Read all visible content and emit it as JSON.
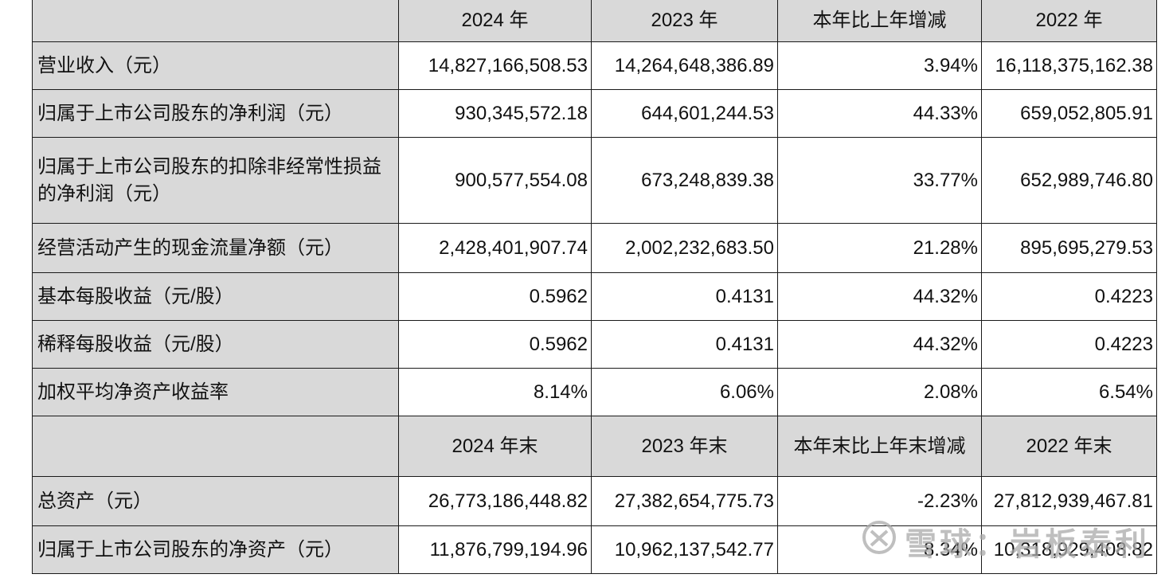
{
  "header1": [
    "",
    "2024 年",
    "2023 年",
    "本年比上年增减",
    "2022 年"
  ],
  "rows1": [
    {
      "label": "营业收入（元）",
      "v2024": "14,827,166,508.53",
      "v2023": "14,264,648,386.89",
      "change": "3.94%",
      "v2022": "16,118,375,162.38"
    },
    {
      "label": "归属于上市公司股东的净利润（元）",
      "v2024": "930,345,572.18",
      "v2023": "644,601,244.53",
      "change": "44.33%",
      "v2022": "659,052,805.91"
    },
    {
      "label": "归属于上市公司股东的扣除非经常性损益的净利润（元）",
      "v2024": "900,577,554.08",
      "v2023": "673,248,839.38",
      "change": "33.77%",
      "v2022": "652,989,746.80"
    },
    {
      "label": "经营活动产生的现金流量净额（元）",
      "v2024": "2,428,401,907.74",
      "v2023": "2,002,232,683.50",
      "change": "21.28%",
      "v2022": "895,695,279.53"
    },
    {
      "label": "基本每股收益（元/股）",
      "v2024": "0.5962",
      "v2023": "0.4131",
      "change": "44.32%",
      "v2022": "0.4223"
    },
    {
      "label": "稀释每股收益（元/股）",
      "v2024": "0.5962",
      "v2023": "0.4131",
      "change": "44.32%",
      "v2022": "0.4223"
    },
    {
      "label": "加权平均净资产收益率",
      "v2024": "8.14%",
      "v2023": "6.06%",
      "change": "2.08%",
      "v2022": "6.54%"
    }
  ],
  "header2": [
    "",
    "2024 年末",
    "2023 年末",
    "本年末比上年末增减",
    "2022 年末"
  ],
  "rows2": [
    {
      "label": "总资产（元）",
      "v2024": "26,773,186,448.82",
      "v2023": "27,382,654,775.73",
      "change": "-2.23%",
      "v2022": "27,812,939,467.81"
    },
    {
      "label": "归属于上市公司股东的净资产（元）",
      "v2024": "11,876,799,194.96",
      "v2023": "10,962,137,542.77",
      "change": "8.34%",
      "v2022": "10,318,929,408.82"
    }
  ],
  "watermark": {
    "text": "雪球：岩板泰利",
    "icon": "snowball-logo-icon"
  }
}
